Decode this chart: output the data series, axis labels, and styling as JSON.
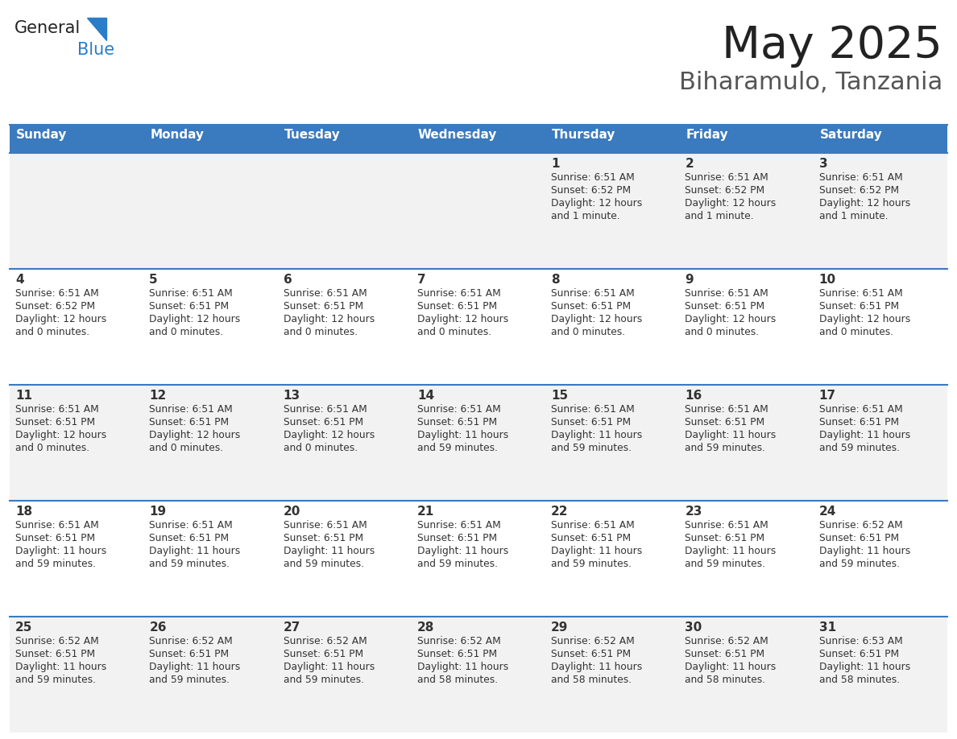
{
  "title": "May 2025",
  "subtitle": "Biharamulo, Tanzania",
  "days_of_week": [
    "Sunday",
    "Monday",
    "Tuesday",
    "Wednesday",
    "Thursday",
    "Friday",
    "Saturday"
  ],
  "header_bg_color": "#3a7abf",
  "header_text_color": "#ffffff",
  "row_bg_colors": [
    "#f2f2f2",
    "#ffffff",
    "#f2f2f2",
    "#ffffff",
    "#f2f2f2"
  ],
  "row_line_color": "#3a7abf",
  "text_color": "#333333",
  "title_color": "#222222",
  "subtitle_color": "#555555",
  "logo_general_color": "#222222",
  "logo_blue_color": "#2a7dc9",
  "calendar": [
    [
      null,
      null,
      null,
      null,
      {
        "day": 1,
        "sunrise": "6:51 AM",
        "sunset": "6:52 PM",
        "daylight": "12 hours",
        "daylight2": "and 1 minute."
      },
      {
        "day": 2,
        "sunrise": "6:51 AM",
        "sunset": "6:52 PM",
        "daylight": "12 hours",
        "daylight2": "and 1 minute."
      },
      {
        "day": 3,
        "sunrise": "6:51 AM",
        "sunset": "6:52 PM",
        "daylight": "12 hours",
        "daylight2": "and 1 minute."
      }
    ],
    [
      {
        "day": 4,
        "sunrise": "6:51 AM",
        "sunset": "6:52 PM",
        "daylight": "12 hours",
        "daylight2": "and 0 minutes."
      },
      {
        "day": 5,
        "sunrise": "6:51 AM",
        "sunset": "6:51 PM",
        "daylight": "12 hours",
        "daylight2": "and 0 minutes."
      },
      {
        "day": 6,
        "sunrise": "6:51 AM",
        "sunset": "6:51 PM",
        "daylight": "12 hours",
        "daylight2": "and 0 minutes."
      },
      {
        "day": 7,
        "sunrise": "6:51 AM",
        "sunset": "6:51 PM",
        "daylight": "12 hours",
        "daylight2": "and 0 minutes."
      },
      {
        "day": 8,
        "sunrise": "6:51 AM",
        "sunset": "6:51 PM",
        "daylight": "12 hours",
        "daylight2": "and 0 minutes."
      },
      {
        "day": 9,
        "sunrise": "6:51 AM",
        "sunset": "6:51 PM",
        "daylight": "12 hours",
        "daylight2": "and 0 minutes."
      },
      {
        "day": 10,
        "sunrise": "6:51 AM",
        "sunset": "6:51 PM",
        "daylight": "12 hours",
        "daylight2": "and 0 minutes."
      }
    ],
    [
      {
        "day": 11,
        "sunrise": "6:51 AM",
        "sunset": "6:51 PM",
        "daylight": "12 hours",
        "daylight2": "and 0 minutes."
      },
      {
        "day": 12,
        "sunrise": "6:51 AM",
        "sunset": "6:51 PM",
        "daylight": "12 hours",
        "daylight2": "and 0 minutes."
      },
      {
        "day": 13,
        "sunrise": "6:51 AM",
        "sunset": "6:51 PM",
        "daylight": "12 hours",
        "daylight2": "and 0 minutes."
      },
      {
        "day": 14,
        "sunrise": "6:51 AM",
        "sunset": "6:51 PM",
        "daylight": "11 hours",
        "daylight2": "and 59 minutes."
      },
      {
        "day": 15,
        "sunrise": "6:51 AM",
        "sunset": "6:51 PM",
        "daylight": "11 hours",
        "daylight2": "and 59 minutes."
      },
      {
        "day": 16,
        "sunrise": "6:51 AM",
        "sunset": "6:51 PM",
        "daylight": "11 hours",
        "daylight2": "and 59 minutes."
      },
      {
        "day": 17,
        "sunrise": "6:51 AM",
        "sunset": "6:51 PM",
        "daylight": "11 hours",
        "daylight2": "and 59 minutes."
      }
    ],
    [
      {
        "day": 18,
        "sunrise": "6:51 AM",
        "sunset": "6:51 PM",
        "daylight": "11 hours",
        "daylight2": "and 59 minutes."
      },
      {
        "day": 19,
        "sunrise": "6:51 AM",
        "sunset": "6:51 PM",
        "daylight": "11 hours",
        "daylight2": "and 59 minutes."
      },
      {
        "day": 20,
        "sunrise": "6:51 AM",
        "sunset": "6:51 PM",
        "daylight": "11 hours",
        "daylight2": "and 59 minutes."
      },
      {
        "day": 21,
        "sunrise": "6:51 AM",
        "sunset": "6:51 PM",
        "daylight": "11 hours",
        "daylight2": "and 59 minutes."
      },
      {
        "day": 22,
        "sunrise": "6:51 AM",
        "sunset": "6:51 PM",
        "daylight": "11 hours",
        "daylight2": "and 59 minutes."
      },
      {
        "day": 23,
        "sunrise": "6:51 AM",
        "sunset": "6:51 PM",
        "daylight": "11 hours",
        "daylight2": "and 59 minutes."
      },
      {
        "day": 24,
        "sunrise": "6:52 AM",
        "sunset": "6:51 PM",
        "daylight": "11 hours",
        "daylight2": "and 59 minutes."
      }
    ],
    [
      {
        "day": 25,
        "sunrise": "6:52 AM",
        "sunset": "6:51 PM",
        "daylight": "11 hours",
        "daylight2": "and 59 minutes."
      },
      {
        "day": 26,
        "sunrise": "6:52 AM",
        "sunset": "6:51 PM",
        "daylight": "11 hours",
        "daylight2": "and 59 minutes."
      },
      {
        "day": 27,
        "sunrise": "6:52 AM",
        "sunset": "6:51 PM",
        "daylight": "11 hours",
        "daylight2": "and 59 minutes."
      },
      {
        "day": 28,
        "sunrise": "6:52 AM",
        "sunset": "6:51 PM",
        "daylight": "11 hours",
        "daylight2": "and 58 minutes."
      },
      {
        "day": 29,
        "sunrise": "6:52 AM",
        "sunset": "6:51 PM",
        "daylight": "11 hours",
        "daylight2": "and 58 minutes."
      },
      {
        "day": 30,
        "sunrise": "6:52 AM",
        "sunset": "6:51 PM",
        "daylight": "11 hours",
        "daylight2": "and 58 minutes."
      },
      {
        "day": 31,
        "sunrise": "6:53 AM",
        "sunset": "6:51 PM",
        "daylight": "11 hours",
        "daylight2": "and 58 minutes."
      }
    ]
  ],
  "fig_width": 11.88,
  "fig_height": 9.18,
  "dpi": 100
}
